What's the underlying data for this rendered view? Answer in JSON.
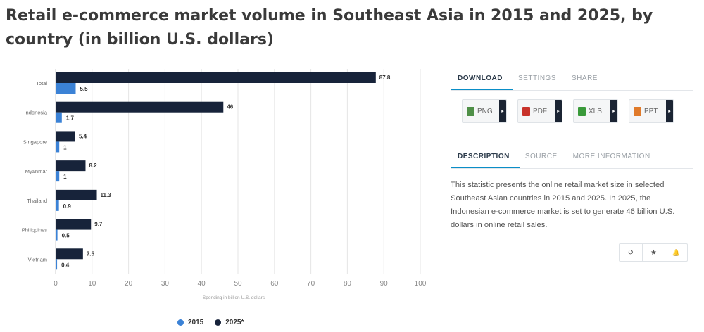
{
  "title": "Retail e-commerce market volume in Southeast Asia in 2015 and 2025, by country (in billion U.S. dollars)",
  "colors": {
    "series_2015": "#3b82d6",
    "series_2025": "#17233a",
    "grid": "#e6e6e6",
    "accent": "#0a8ec7"
  },
  "chart_data": {
    "type": "bar",
    "orientation": "horizontal",
    "categories": [
      "Total",
      "Indonesia",
      "Singapore",
      "Myanmar",
      "Thailand",
      "Philippines",
      "Vietnam"
    ],
    "series": [
      {
        "name": "2025*",
        "values": [
          87.8,
          46,
          5.4,
          8.2,
          11.3,
          9.7,
          7.5
        ]
      },
      {
        "name": "2015",
        "values": [
          5.5,
          1.7,
          1,
          1,
          0.9,
          0.5,
          0.4
        ]
      }
    ],
    "xlabel": "Spending in billion U.S. dollars",
    "xlim": [
      0,
      100
    ],
    "xticks": [
      0,
      10,
      20,
      30,
      40,
      50,
      60,
      70,
      80,
      90,
      100
    ],
    "grid": true,
    "legend": "bottom"
  },
  "legend": {
    "items": [
      "2015",
      "2025*"
    ]
  },
  "panel": {
    "tabs": [
      "DOWNLOAD",
      "SETTINGS",
      "SHARE"
    ],
    "downloads": [
      {
        "label": "PNG",
        "icon": "image-file-icon",
        "color": "#4f8f47"
      },
      {
        "label": "PDF",
        "icon": "pdf-file-icon",
        "color": "#c8322a"
      },
      {
        "label": "XLS",
        "icon": "spreadsheet-file-icon",
        "color": "#3a9a3a"
      },
      {
        "label": "PPT",
        "icon": "presentation-file-icon",
        "color": "#e07a2a"
      }
    ],
    "caret": "▸",
    "desc_tabs": [
      "DESCRIPTION",
      "SOURCE",
      "MORE INFORMATION"
    ],
    "description": "This statistic presents the online retail market size in selected Southeast Asian countries in 2015 and 2025. In 2025, the Indonesian e-commerce market is set to generate 46 billion U.S. dollars in online retail sales.",
    "tools": [
      {
        "name": "history-icon",
        "glyph": "↺"
      },
      {
        "name": "star-icon",
        "glyph": "★"
      },
      {
        "name": "bell-icon",
        "glyph": "🔔"
      }
    ]
  }
}
